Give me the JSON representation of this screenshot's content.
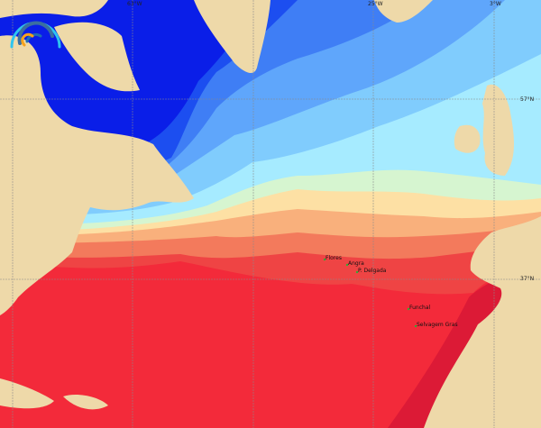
{
  "map": {
    "colors": {
      "land": "#eed9a9",
      "gridline": "#8a8a8a",
      "sst_bands": [
        "#0a1ee8",
        "#1c4ef0",
        "#3f7ef5",
        "#5fa6fb",
        "#80ccfd",
        "#a6ebff",
        "#d6f5d0",
        "#fde0a4",
        "#f9b07c",
        "#f37a5c",
        "#ef4444",
        "#f32a3a",
        "#dc1a36"
      ]
    },
    "grid": {
      "longitude_labels": [
        "63°W",
        "25°W",
        "3°W"
      ],
      "latitude_labels": [
        "57°N",
        "37°N"
      ]
    },
    "places": [
      {
        "name": "Flores"
      },
      {
        "name": "Angra"
      },
      {
        "name": "P. Delgada"
      },
      {
        "name": "Funchal"
      },
      {
        "name": "Selvagem Gras"
      }
    ],
    "logo": "arc-logo"
  }
}
